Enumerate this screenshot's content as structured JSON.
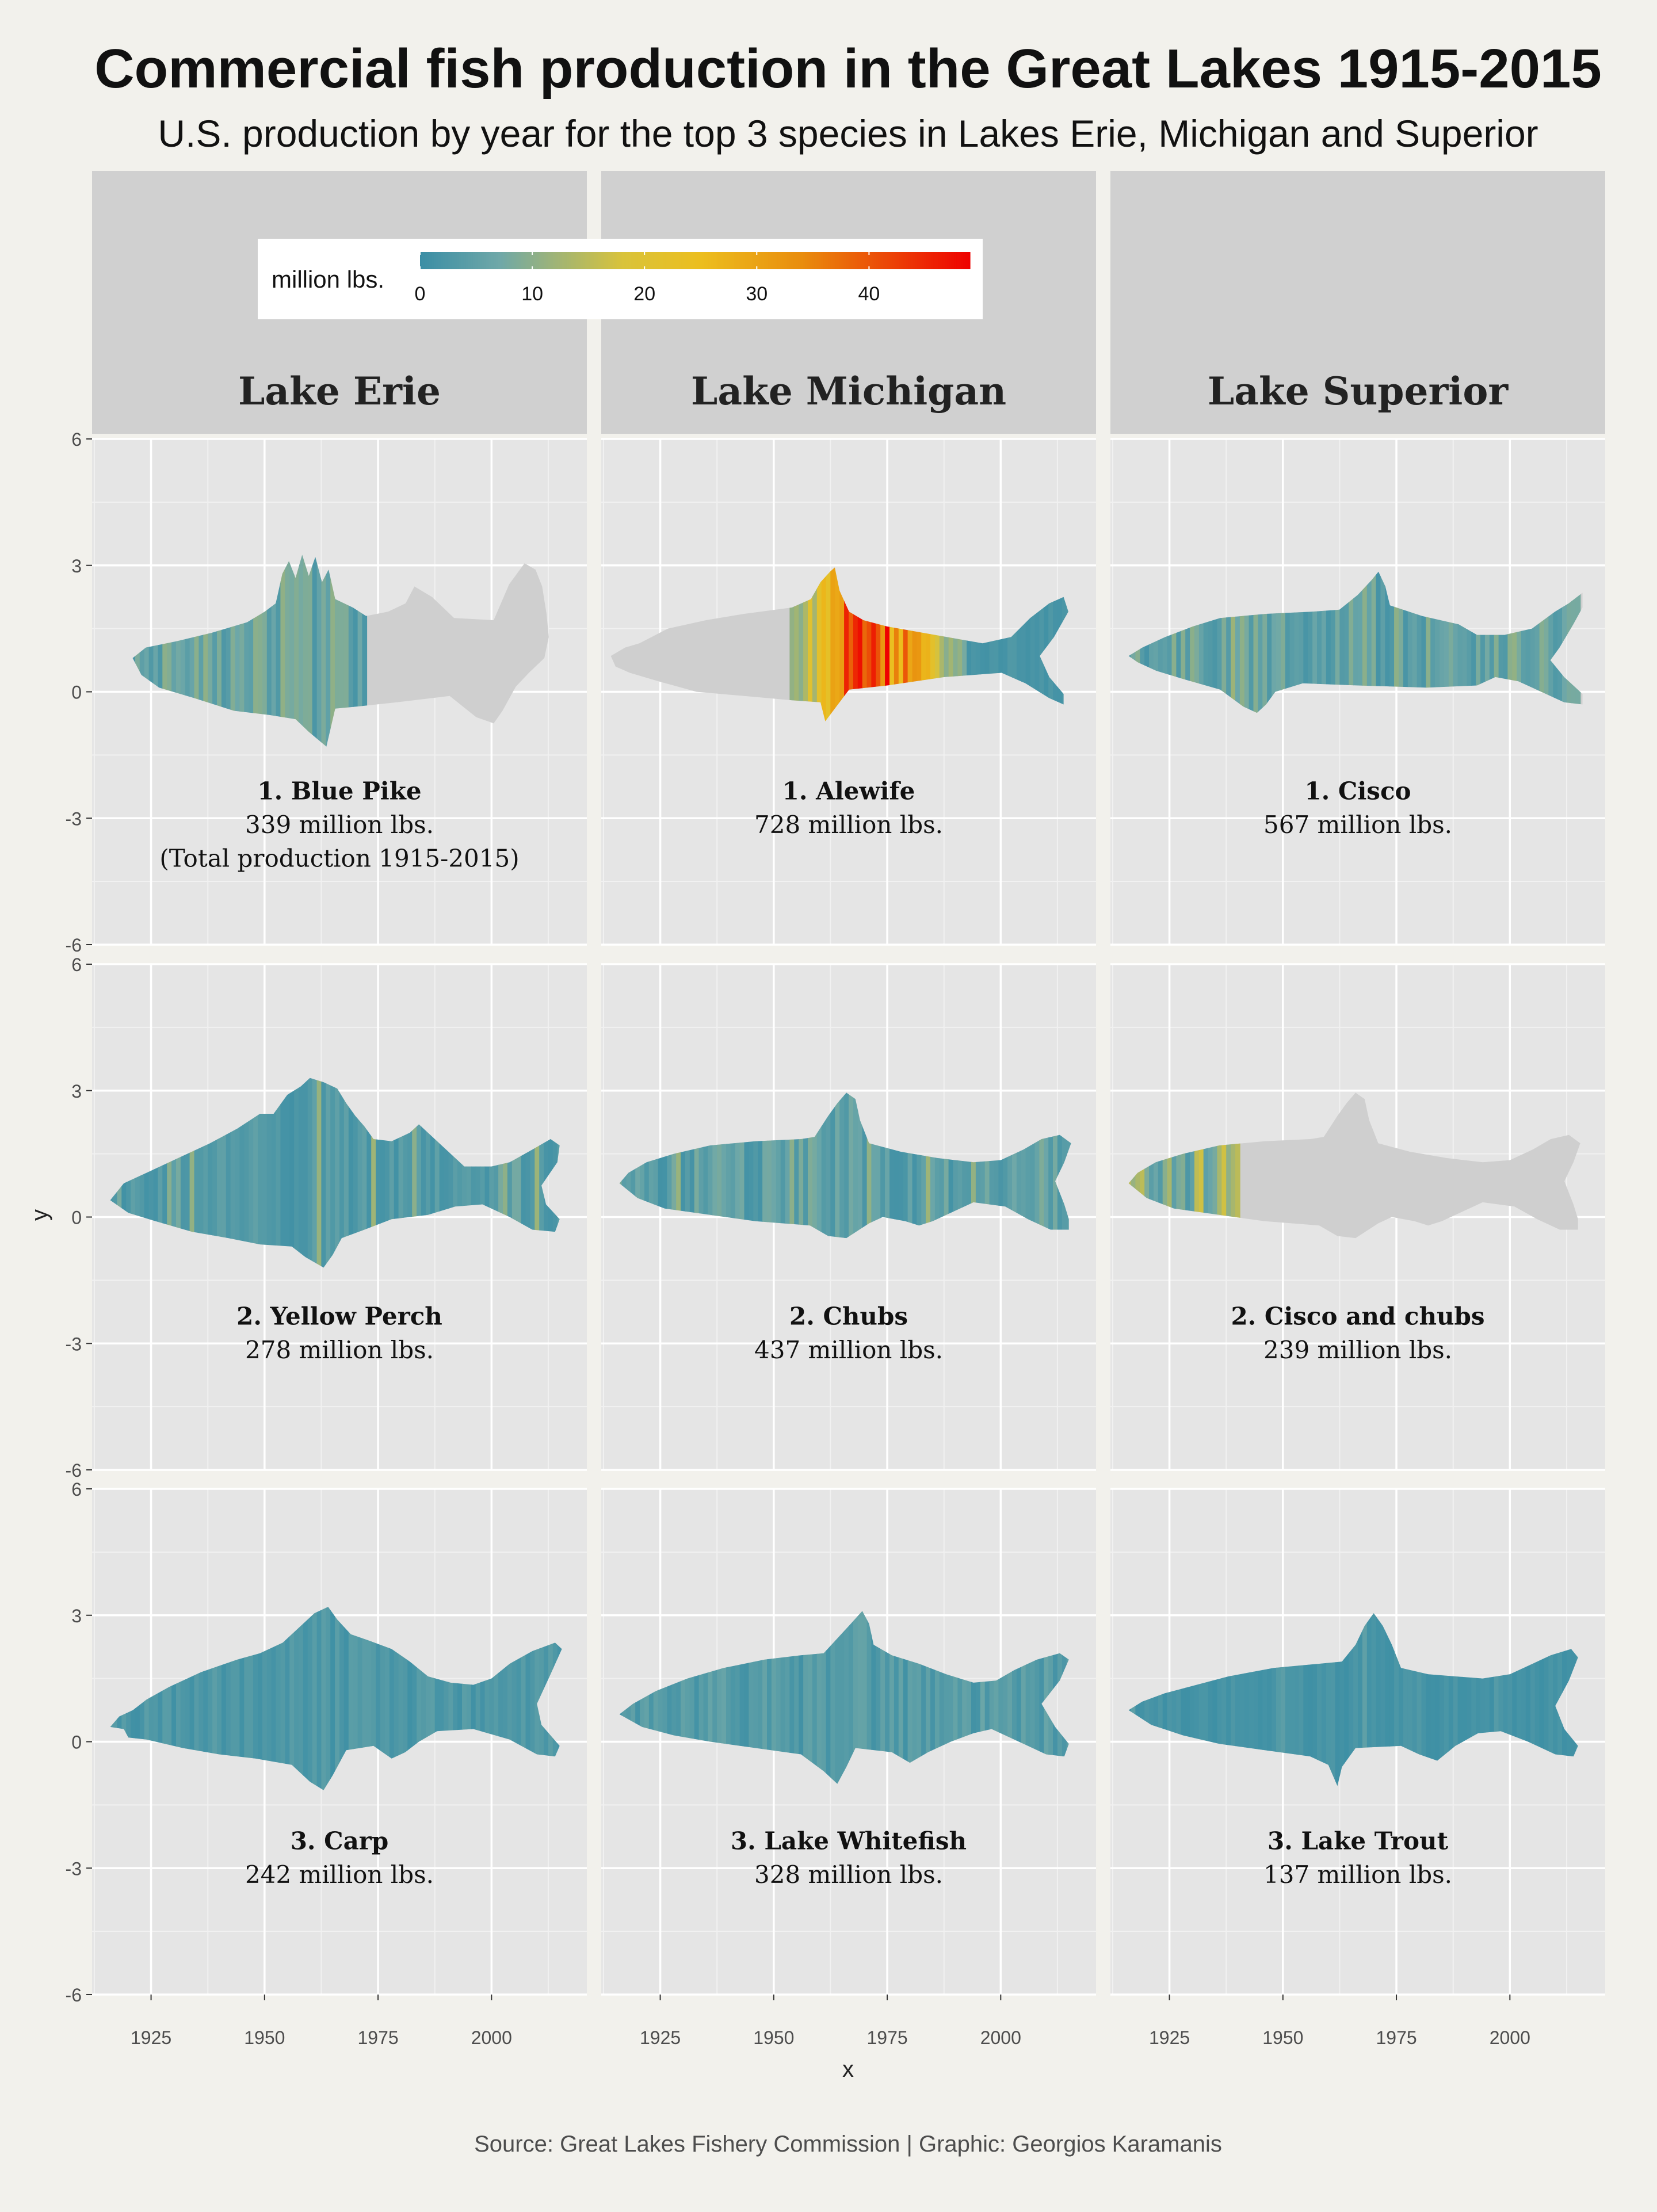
{
  "chart_data": {
    "type": "heatmap",
    "title": "Commercial fish production in the Great Lakes 1915-2015",
    "subtitle": "U.S. production by year for the top 3 species in Lakes Erie, Michigan and Superior",
    "caption": "Source: Great Lakes Fishery Commission | Graphic: Georgios Karamanis",
    "xlabel": "x",
    "ylabel": "y",
    "xlim": [
      1912,
      2021
    ],
    "ylim": [
      -6,
      6
    ],
    "x_ticks": [
      1925,
      1950,
      1975,
      2000
    ],
    "y_ticks": [
      6,
      3,
      0,
      -3,
      -6
    ],
    "legend": {
      "title": "million lbs.",
      "position": "top-left",
      "ticks": [
        0,
        10,
        20,
        30,
        40
      ],
      "range": [
        0,
        49
      ],
      "colors": [
        "#3b8ea5",
        "#6fa8a8",
        "#d9c33a",
        "#ecbe1e",
        "#e98c0d",
        "#ee0000"
      ]
    },
    "lakes": [
      "Lake Erie",
      "Lake Michigan",
      "Lake Superior"
    ],
    "panels": [
      {
        "lake": "Lake Erie",
        "rank": 1,
        "species": "1. Blue Pike",
        "total": "339 million lbs.",
        "note": "(Total production 1915-2015)",
        "shape": "pike",
        "years": [
          1915,
          1972
        ],
        "peak": 10,
        "mean": 6
      },
      {
        "lake": "Lake Michigan",
        "rank": 1,
        "species": "1. Alewife",
        "total": "728 million lbs.",
        "shape": "alewife",
        "years": [
          1954,
          2015
        ],
        "peak": 48,
        "mean": 12
      },
      {
        "lake": "Lake Superior",
        "rank": 1,
        "species": "1. Cisco",
        "total": "567 million lbs.",
        "shape": "cisco",
        "years": [
          1915,
          2015
        ],
        "peak": 12,
        "mean": 5.6
      },
      {
        "lake": "Lake Erie",
        "rank": 2,
        "species": "2. Yellow Perch",
        "total": "278 million lbs.",
        "shape": "perch",
        "years": [
          1915,
          2015
        ],
        "peak": 12,
        "mean": 2.8
      },
      {
        "lake": "Lake Michigan",
        "rank": 2,
        "species": "2. Chubs",
        "total": "437 million lbs.",
        "shape": "chub",
        "years": [
          1915,
          2015
        ],
        "peak": 12,
        "mean": 4.3
      },
      {
        "lake": "Lake Superior",
        "rank": 2,
        "species": "2. Cisco and chubs",
        "total": "239 million lbs.",
        "shape": "chub",
        "years": [
          1915,
          1940
        ],
        "peak": 16,
        "mean": 9.5
      },
      {
        "lake": "Lake Erie",
        "rank": 3,
        "species": "3. Carp",
        "total": "242 million lbs.",
        "shape": "carp",
        "years": [
          1915,
          2015
        ],
        "peak": 5,
        "mean": 2.4
      },
      {
        "lake": "Lake Michigan",
        "rank": 3,
        "species": "3. Lake Whitefish",
        "total": "328 million lbs.",
        "shape": "whitefish",
        "years": [
          1915,
          2015
        ],
        "peak": 7,
        "mean": 3.2
      },
      {
        "lake": "Lake Superior",
        "rank": 3,
        "species": "3. Lake Trout",
        "total": "137 million lbs.",
        "shape": "trout",
        "years": [
          1915,
          2015
        ],
        "peak": 5,
        "mean": 1.4
      }
    ]
  }
}
